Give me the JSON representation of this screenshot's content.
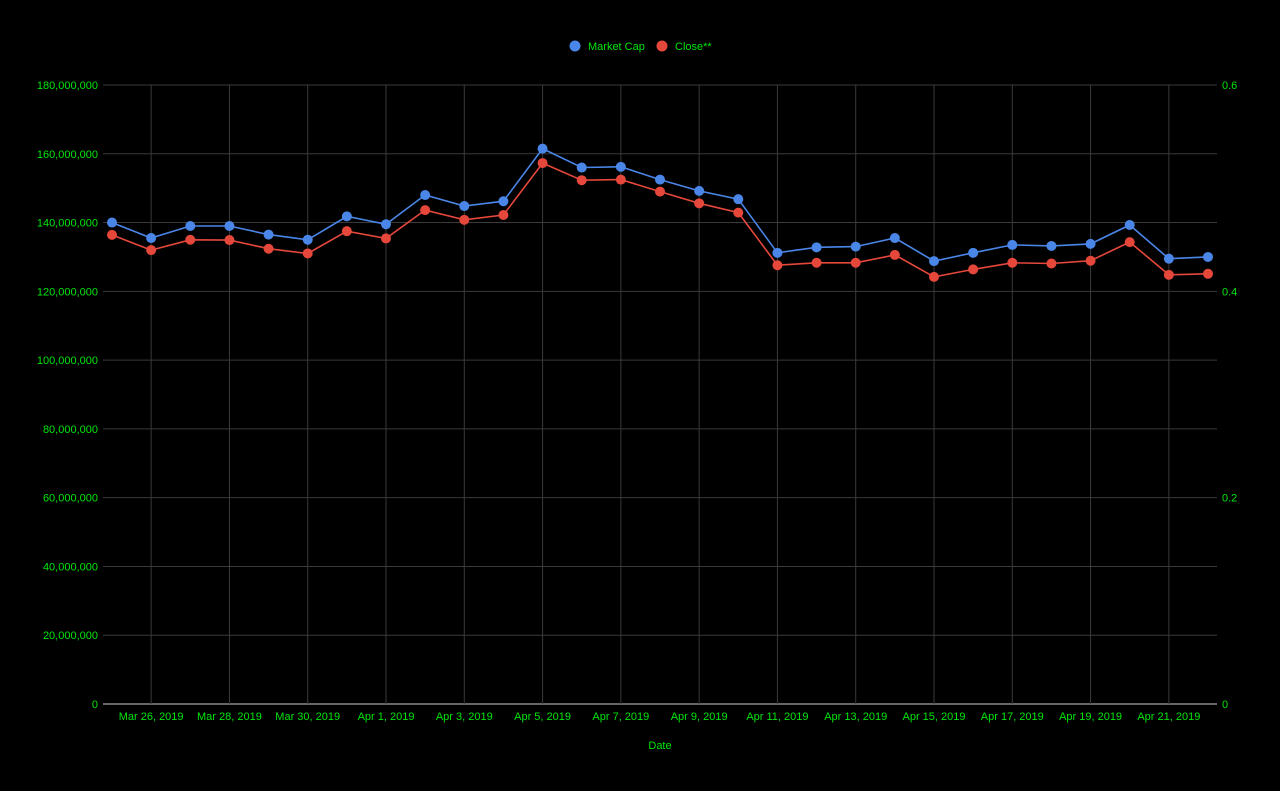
{
  "chart_data": {
    "type": "line",
    "xlabel": "Date",
    "legend_position": "top",
    "grid": true,
    "colors": {
      "background": "#000000",
      "text": "#00e60a",
      "grid": "#3a3a3a",
      "market_cap": "#4a86e8",
      "close": "#e5473b"
    },
    "y_left": {
      "min": 0,
      "max": 180000000,
      "ticks": [
        0,
        20000000,
        40000000,
        60000000,
        80000000,
        100000000,
        120000000,
        140000000,
        160000000,
        180000000
      ],
      "tick_labels": [
        "0",
        "20,000,000",
        "40,000,000",
        "60,000,000",
        "80,000,000",
        "100,000,000",
        "120,000,000",
        "140,000,000",
        "160,000,000",
        "180,000,000"
      ]
    },
    "y_right": {
      "min": 0,
      "max": 0.6,
      "ticks": [
        0,
        0.2,
        0.4,
        0.6
      ],
      "tick_labels": [
        "0",
        "0.2",
        "0.4",
        "0.6"
      ]
    },
    "x_tick_labels": [
      "Mar 26, 2019",
      "Mar 28, 2019",
      "Mar 30, 2019",
      "Apr 1, 2019",
      "Apr 3, 2019",
      "Apr 5, 2019",
      "Apr 7, 2019",
      "Apr 9, 2019",
      "Apr 11, 2019",
      "Apr 13, 2019",
      "Apr 15, 2019",
      "Apr 17, 2019",
      "Apr 19, 2019",
      "Apr 21, 2019"
    ],
    "x": [
      "2019-03-25",
      "2019-03-26",
      "2019-03-27",
      "2019-03-28",
      "2019-03-29",
      "2019-03-30",
      "2019-03-31",
      "2019-04-01",
      "2019-04-02",
      "2019-04-03",
      "2019-04-04",
      "2019-04-05",
      "2019-04-06",
      "2019-04-07",
      "2019-04-08",
      "2019-04-09",
      "2019-04-10",
      "2019-04-11",
      "2019-04-12",
      "2019-04-13",
      "2019-04-14",
      "2019-04-15",
      "2019-04-16",
      "2019-04-17",
      "2019-04-18",
      "2019-04-19",
      "2019-04-20",
      "2019-04-21",
      "2019-04-22"
    ],
    "series": [
      {
        "name": "Market Cap",
        "axis": "left",
        "values": [
          140000000,
          135500000,
          139000000,
          139000000,
          136500000,
          135000000,
          141800000,
          139500000,
          148000000,
          144800000,
          146200000,
          161500000,
          156000000,
          156200000,
          152500000,
          149200000,
          146800000,
          131200000,
          132800000,
          133000000,
          135500000,
          128800000,
          131200000,
          133500000,
          133200000,
          133800000,
          139300000,
          129500000,
          130000000
        ]
      },
      {
        "name": "Close**",
        "axis": "right",
        "values": [
          0.4547,
          0.44,
          0.45,
          0.4497,
          0.4413,
          0.4367,
          0.4583,
          0.4513,
          0.4787,
          0.4693,
          0.474,
          0.5243,
          0.5077,
          0.5083,
          0.4967,
          0.4853,
          0.4763,
          0.4253,
          0.4277,
          0.4277,
          0.4353,
          0.414,
          0.4213,
          0.4277,
          0.427,
          0.4297,
          0.4477,
          0.416,
          0.417
        ]
      }
    ]
  }
}
